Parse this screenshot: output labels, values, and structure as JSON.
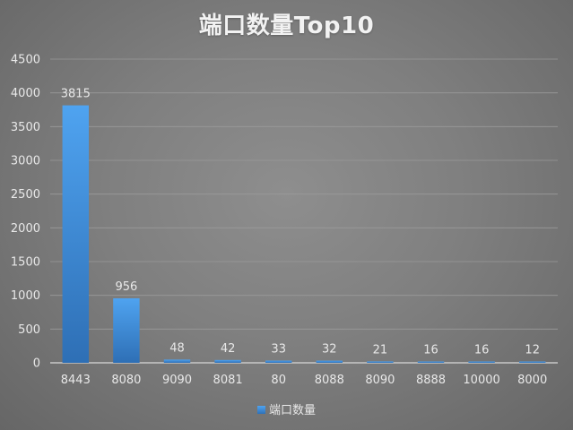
{
  "chart_data": {
    "type": "bar",
    "title": "端口数量Top10",
    "categories": [
      "8443",
      "8080",
      "9090",
      "8081",
      "80",
      "8088",
      "8090",
      "8888",
      "10000",
      "8000"
    ],
    "series": [
      {
        "name": "端口数量",
        "values": [
          3815,
          956,
          48,
          42,
          33,
          32,
          21,
          16,
          16,
          12
        ]
      }
    ],
    "ylim": [
      0,
      4500
    ],
    "yticks": [
      0,
      500,
      1000,
      1500,
      2000,
      2500,
      3000,
      3500,
      4000,
      4500
    ],
    "grid": true,
    "legend": "bottom-center",
    "colors": {
      "bar_top": "#4fa3f0",
      "bar_bottom": "#2e6fb5",
      "grid": "#9a9a9a",
      "text": "#e8e8e8"
    }
  }
}
